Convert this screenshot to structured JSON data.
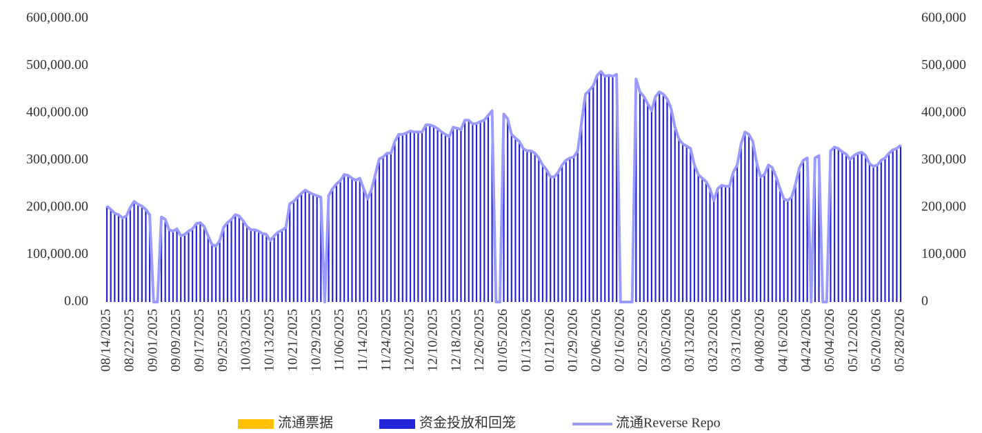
{
  "chart_data": {
    "type": "bar",
    "categories": [
      "08/14/2025",
      null,
      null,
      null,
      null,
      null,
      "08/22/2025",
      null,
      null,
      null,
      null,
      null,
      "09/01/2025",
      null,
      null,
      null,
      null,
      null,
      "09/09/2025",
      null,
      null,
      null,
      null,
      null,
      "09/17/2025",
      null,
      null,
      null,
      null,
      null,
      "09/25/2025",
      null,
      null,
      null,
      null,
      null,
      "10/03/2025",
      null,
      null,
      null,
      null,
      null,
      "10/13/2025",
      null,
      null,
      null,
      null,
      null,
      "10/21/2025",
      null,
      null,
      null,
      null,
      null,
      "10/29/2025",
      null,
      null,
      null,
      null,
      null,
      "11/06/2025",
      null,
      null,
      null,
      null,
      null,
      "11/14/2025",
      null,
      null,
      null,
      null,
      null,
      "11/24/2025",
      null,
      null,
      null,
      null,
      null,
      "12/02/2025",
      null,
      null,
      null,
      null,
      null,
      "12/10/2025",
      null,
      null,
      null,
      null,
      null,
      "12/18/2025",
      null,
      null,
      null,
      null,
      null,
      "12/26/2025",
      null,
      null,
      null,
      null,
      null,
      "01/05/2026",
      null,
      null,
      null,
      null,
      null,
      "01/13/2026",
      null,
      null,
      null,
      null,
      null,
      "01/21/2026",
      null,
      null,
      null,
      null,
      null,
      "01/29/2026",
      null,
      null,
      null,
      null,
      null,
      "02/06/2026",
      null,
      null,
      null,
      null,
      null,
      "02/16/2026",
      null,
      null,
      null,
      null,
      null,
      "02/25/2026",
      null,
      null,
      null,
      null,
      null,
      "03/05/2026",
      null,
      null,
      null,
      null,
      null,
      "03/13/2026",
      null,
      null,
      null,
      null,
      null,
      "03/23/2026",
      null,
      null,
      null,
      null,
      null,
      "03/31/2026",
      null,
      null,
      null,
      null,
      null,
      "04/08/2026",
      null,
      null,
      null,
      null,
      null,
      "04/16/2026",
      null,
      null,
      null,
      null,
      null,
      "04/24/2026",
      null,
      null,
      null,
      null,
      null,
      "05/04/2026",
      null,
      null,
      null,
      null,
      null,
      "05/12/2026",
      null,
      null,
      null,
      null,
      null,
      "05/20/2026",
      null,
      null,
      null,
      null,
      null,
      "05/28/2026"
    ],
    "series": [
      {
        "name": "流通票据",
        "color": "#ffc000",
        "type": "bar"
      },
      {
        "name": "资金投放和回笼",
        "color": "#2323d8",
        "type": "bar",
        "values": [
          203000,
          196000,
          188000,
          185000,
          178000,
          182000,
          200000,
          213000,
          207000,
          203000,
          196000,
          185000,
          0,
          0,
          180000,
          175000,
          153000,
          150000,
          155000,
          140000,
          143000,
          150000,
          155000,
          166000,
          168000,
          160000,
          140000,
          122000,
          118000,
          130000,
          158000,
          168000,
          175000,
          185000,
          182000,
          172000,
          160000,
          153000,
          153000,
          150000,
          145000,
          143000,
          130000,
          140000,
          148000,
          152000,
          158000,
          208000,
          213000,
          222000,
          230000,
          237000,
          232000,
          228000,
          225000,
          222000,
          0,
          225000,
          240000,
          250000,
          257000,
          270000,
          268000,
          262000,
          258000,
          262000,
          240000,
          218000,
          238000,
          270000,
          303000,
          307000,
          315000,
          315000,
          340000,
          355000,
          355000,
          358000,
          362000,
          360000,
          360000,
          360000,
          375000,
          375000,
          372000,
          367000,
          360000,
          355000,
          350000,
          370000,
          368000,
          365000,
          385000,
          385000,
          377000,
          378000,
          382000,
          385000,
          395000,
          405000,
          0,
          0,
          398000,
          388000,
          355000,
          347000,
          340000,
          325000,
          320000,
          320000,
          315000,
          305000,
          290000,
          280000,
          265000,
          265000,
          275000,
          290000,
          300000,
          305000,
          307000,
          320000,
          380000,
          440000,
          448000,
          458000,
          480000,
          488000,
          478000,
          480000,
          478000,
          482000,
          0,
          0,
          0,
          0,
          472000,
          445000,
          435000,
          420000,
          405000,
          435000,
          445000,
          440000,
          430000,
          410000,
          370000,
          345000,
          335000,
          330000,
          325000,
          290000,
          270000,
          262000,
          255000,
          240000,
          215000,
          240000,
          247000,
          245000,
          245000,
          275000,
          290000,
          335000,
          360000,
          355000,
          340000,
          295000,
          265000,
          270000,
          290000,
          285000,
          265000,
          240000,
          218000,
          215000,
          222000,
          250000,
          285000,
          300000,
          305000,
          0,
          305000,
          310000,
          0,
          0,
          320000,
          328000,
          325000,
          318000,
          313000,
          302000,
          310000,
          315000,
          317000,
          310000,
          293000,
          287000,
          290000,
          300000,
          305000,
          315000,
          322000,
          325000,
          332000
        ]
      },
      {
        "name": "流通Reverse Repo",
        "color": "#9b9bff",
        "type": "line",
        "axis": "y2",
        "values": [
          203000,
          196000,
          188000,
          185000,
          178000,
          182000,
          200000,
          213000,
          207000,
          203000,
          196000,
          185000,
          0,
          0,
          180000,
          175000,
          153000,
          150000,
          155000,
          140000,
          143000,
          150000,
          155000,
          166000,
          168000,
          160000,
          140000,
          122000,
          118000,
          130000,
          158000,
          168000,
          175000,
          185000,
          182000,
          172000,
          160000,
          153000,
          153000,
          150000,
          145000,
          143000,
          130000,
          140000,
          148000,
          152000,
          158000,
          208000,
          213000,
          222000,
          230000,
          237000,
          232000,
          228000,
          225000,
          222000,
          0,
          225000,
          240000,
          250000,
          257000,
          270000,
          268000,
          262000,
          258000,
          262000,
          240000,
          218000,
          238000,
          270000,
          303000,
          307000,
          315000,
          315000,
          340000,
          355000,
          355000,
          358000,
          362000,
          360000,
          360000,
          360000,
          375000,
          375000,
          372000,
          367000,
          360000,
          355000,
          350000,
          370000,
          368000,
          365000,
          385000,
          385000,
          377000,
          378000,
          382000,
          385000,
          395000,
          405000,
          0,
          0,
          398000,
          388000,
          355000,
          347000,
          340000,
          325000,
          320000,
          320000,
          315000,
          305000,
          290000,
          280000,
          265000,
          265000,
          275000,
          290000,
          300000,
          305000,
          307000,
          320000,
          380000,
          440000,
          448000,
          458000,
          480000,
          488000,
          478000,
          480000,
          478000,
          482000,
          0,
          0,
          0,
          0,
          472000,
          445000,
          435000,
          420000,
          405000,
          435000,
          445000,
          440000,
          430000,
          410000,
          370000,
          345000,
          335000,
          330000,
          325000,
          290000,
          270000,
          262000,
          255000,
          240000,
          215000,
          240000,
          247000,
          245000,
          245000,
          275000,
          290000,
          335000,
          360000,
          355000,
          340000,
          295000,
          265000,
          270000,
          290000,
          285000,
          265000,
          240000,
          218000,
          215000,
          222000,
          250000,
          285000,
          300000,
          305000,
          0,
          305000,
          310000,
          0,
          0,
          320000,
          328000,
          325000,
          318000,
          313000,
          302000,
          310000,
          315000,
          317000,
          310000,
          293000,
          287000,
          290000,
          300000,
          305000,
          315000,
          322000,
          325000,
          332000
        ]
      }
    ],
    "ylim": [
      0,
      600000
    ],
    "yticks": [
      {
        "value": 0,
        "label": "0.00"
      },
      {
        "value": 100000,
        "label": "100,000.00"
      },
      {
        "value": 200000,
        "label": "200,000.00"
      },
      {
        "value": 300000,
        "label": "300,000.00"
      },
      {
        "value": 400000,
        "label": "400,000.00"
      },
      {
        "value": 500000,
        "label": "500,000.00"
      },
      {
        "value": 600000,
        "label": "600,000.00"
      }
    ],
    "y2lim": [
      0,
      600000
    ],
    "y2ticks": [
      0,
      {
        "value": 100000,
        "label": "100,000"
      },
      {
        "value": 200000,
        "label": "200,000"
      },
      {
        "value": 300000,
        "label": "300,000"
      },
      {
        "value": 400000,
        "label": "400,000"
      },
      {
        "value": 500000,
        "label": "500,000"
      },
      {
        "value": 600000,
        "label": "600,000"
      }
    ],
    "grid": false,
    "legend": "bottom"
  }
}
